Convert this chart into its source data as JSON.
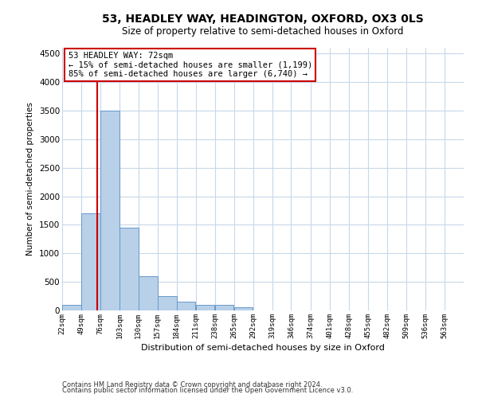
{
  "title": "53, HEADLEY WAY, HEADINGTON, OXFORD, OX3 0LS",
  "subtitle": "Size of property relative to semi-detached houses in Oxford",
  "xlabel": "Distribution of semi-detached houses by size in Oxford",
  "ylabel": "Number of semi-detached properties",
  "footnote1": "Contains HM Land Registry data © Crown copyright and database right 2024.",
  "footnote2": "Contains public sector information licensed under the Open Government Licence v3.0.",
  "annotation_title": "53 HEADLEY WAY: 72sqm",
  "annotation_line1": "← 15% of semi-detached houses are smaller (1,199)",
  "annotation_line2": "85% of semi-detached houses are larger (6,740) →",
  "property_size": 72,
  "bar_left_edges": [
    22,
    49,
    76,
    103,
    130,
    157,
    184,
    211,
    238,
    265,
    292,
    319,
    346,
    374,
    401,
    428,
    455,
    482,
    509,
    536
  ],
  "bar_heights": [
    100,
    1700,
    3500,
    1450,
    600,
    250,
    150,
    100,
    100,
    50,
    0,
    0,
    0,
    0,
    0,
    0,
    0,
    0,
    0,
    0
  ],
  "bin_width": 27,
  "bar_color": "#b8d0e8",
  "bar_edge_color": "#6699cc",
  "line_color": "#cc0000",
  "annotation_box_color": "#ffffff",
  "annotation_box_edge": "#cc0000",
  "background_color": "#ffffff",
  "grid_color": "#c8d8e8",
  "ylim": [
    0,
    4600
  ],
  "yticks": [
    0,
    500,
    1000,
    1500,
    2000,
    2500,
    3000,
    3500,
    4000,
    4500
  ],
  "tick_labels": [
    "22sqm",
    "49sqm",
    "76sqm",
    "103sqm",
    "130sqm",
    "157sqm",
    "184sqm",
    "211sqm",
    "238sqm",
    "265sqm",
    "292sqm",
    "319sqm",
    "346sqm",
    "374sqm",
    "401sqm",
    "428sqm",
    "455sqm",
    "482sqm",
    "509sqm",
    "536sqm",
    "563sqm"
  ],
  "title_fontsize": 10,
  "subtitle_fontsize": 8.5,
  "xlabel_fontsize": 8,
  "ylabel_fontsize": 7.5,
  "tick_fontsize": 6.5,
  "ytick_fontsize": 7.5,
  "ann_fontsize": 7.5,
  "footnote_fontsize": 6
}
